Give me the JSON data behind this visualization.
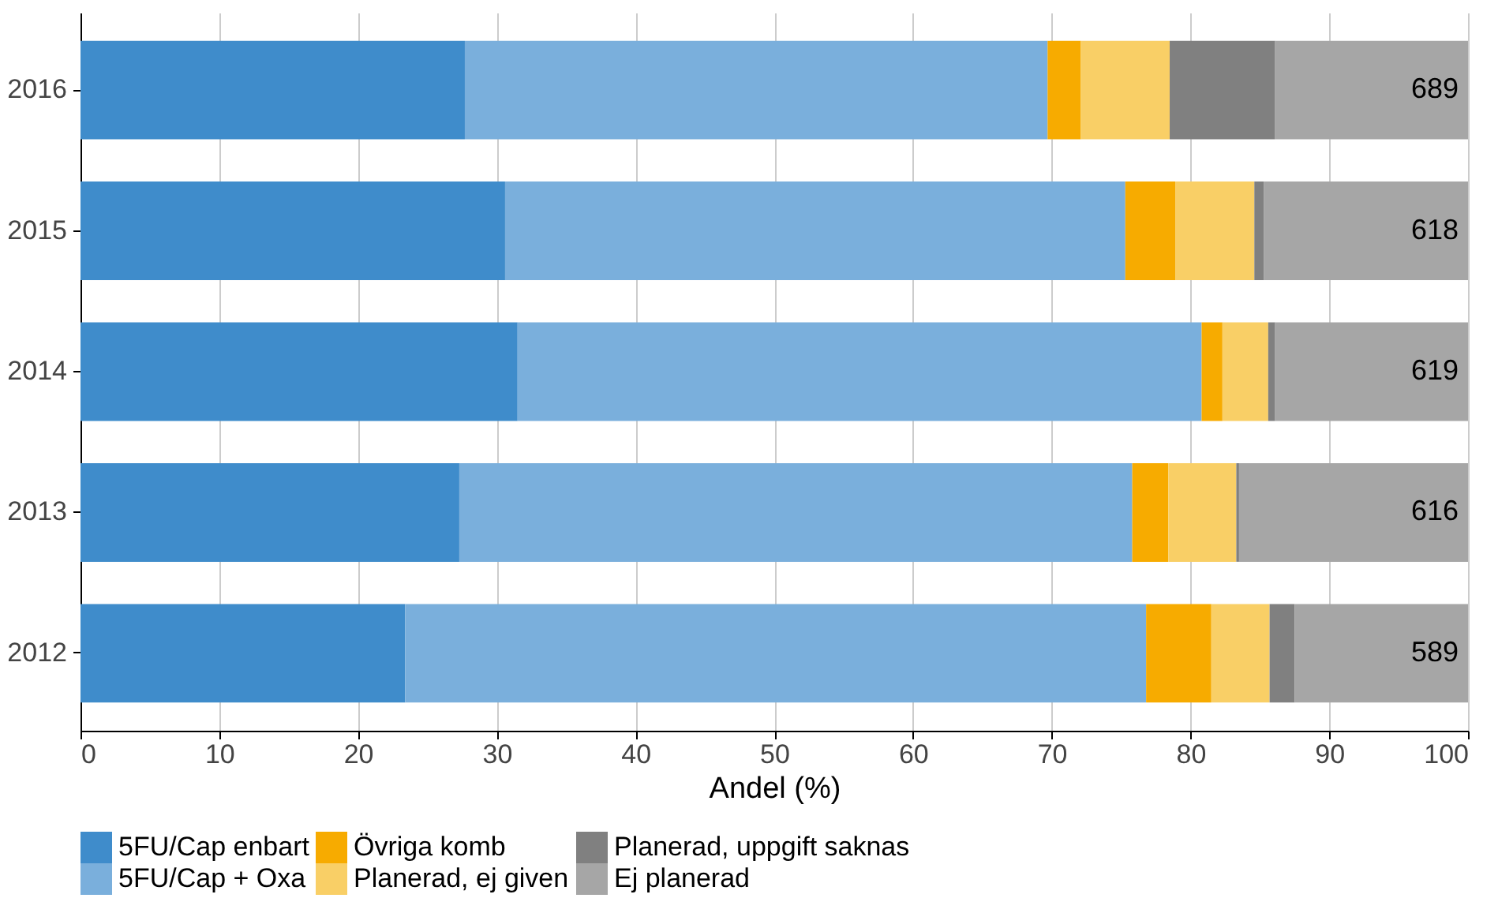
{
  "chart_data": {
    "type": "bar",
    "orientation": "horizontal",
    "stacked": true,
    "xlabel": "Andel (%)",
    "categories": [
      "2016",
      "2015",
      "2014",
      "2013",
      "2012"
    ],
    "series": [
      {
        "name": "5FU/Cap enbart",
        "color": "#3f8ccb",
        "values": [
          27.7,
          30.6,
          31.5,
          27.3,
          23.4
        ]
      },
      {
        "name": "5FU/Cap + Oxa",
        "color": "#7aafdc",
        "values": [
          42.0,
          44.7,
          49.3,
          48.5,
          53.4
        ]
      },
      {
        "name": "Övriga komb",
        "color": "#f7ab00",
        "values": [
          2.4,
          3.6,
          1.5,
          2.6,
          4.7
        ]
      },
      {
        "name": "Planerad, ej given",
        "color": "#f9cf66",
        "values": [
          6.4,
          5.7,
          3.3,
          4.9,
          4.2
        ]
      },
      {
        "name": "Planerad, uppgift saknas",
        "color": "#808080",
        "values": [
          7.6,
          0.7,
          0.5,
          0.2,
          1.8
        ]
      },
      {
        "name": "Ej planerad",
        "color": "#a6a6a6",
        "values": [
          13.9,
          14.7,
          13.9,
          16.5,
          12.5
        ]
      }
    ],
    "xlim": [
      0,
      100
    ],
    "xticks": [
      0,
      10,
      20,
      30,
      40,
      50,
      60,
      70,
      80,
      90,
      100
    ],
    "grid": "x",
    "legend": "bottom",
    "annotations": [
      "689",
      "618",
      "619",
      "616",
      "589"
    ]
  }
}
